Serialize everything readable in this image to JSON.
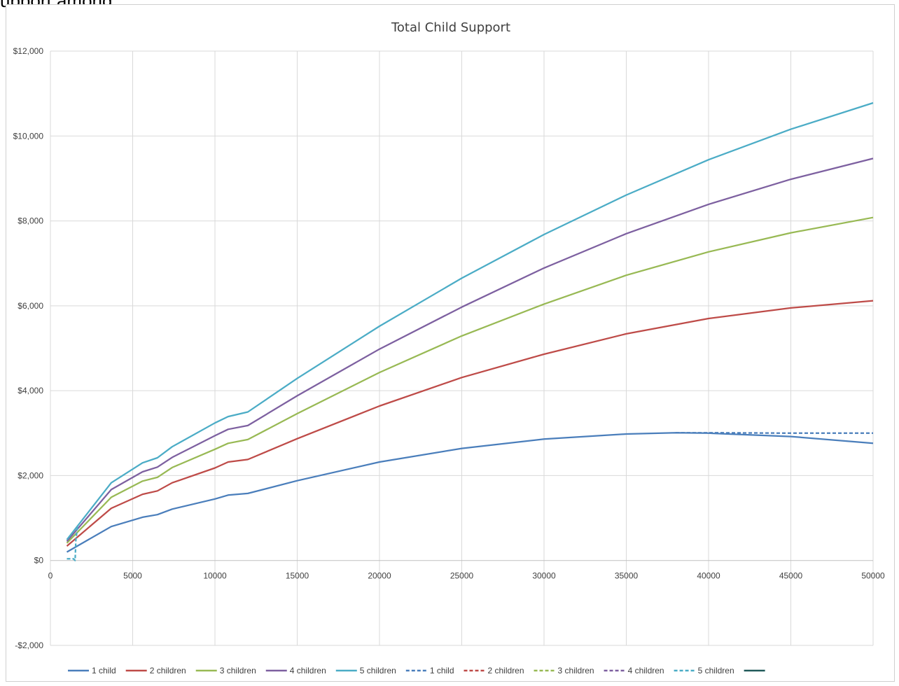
{
  "top_text": "upport among",
  "chart_data": {
    "type": "line",
    "title": "Total Child Support",
    "xlabel": "",
    "ylabel": "",
    "xlim": [
      0,
      50000
    ],
    "ylim": [
      -2000,
      12000
    ],
    "x_ticks": [
      0,
      5000,
      10000,
      15000,
      20000,
      25000,
      30000,
      35000,
      40000,
      45000,
      50000
    ],
    "x_tick_labels": [
      "0",
      "5000",
      "10000",
      "15000",
      "20000",
      "25000",
      "30000",
      "35000",
      "40000",
      "45000",
      "50000"
    ],
    "y_ticks": [
      -2000,
      0,
      2000,
      4000,
      6000,
      8000,
      10000,
      12000
    ],
    "y_tick_labels": [
      "-$2,000",
      "$0",
      "$2,000",
      "$4,000",
      "$6,000",
      "$8,000",
      "$10,000",
      "$12,000"
    ],
    "grid": true,
    "legend_position": "bottom",
    "series": [
      {
        "name": "1 child",
        "color": "#4a7ebb",
        "dash": false,
        "points": [
          [
            1000,
            200
          ],
          [
            3700,
            800
          ],
          [
            5600,
            1020
          ],
          [
            6500,
            1080
          ],
          [
            7400,
            1210
          ],
          [
            10000,
            1450
          ],
          [
            10800,
            1540
          ],
          [
            12000,
            1580
          ],
          [
            15000,
            1880
          ],
          [
            20000,
            2320
          ],
          [
            25000,
            2640
          ],
          [
            30000,
            2860
          ],
          [
            35000,
            2980
          ],
          [
            38000,
            3010
          ],
          [
            40000,
            3000
          ],
          [
            45000,
            2920
          ],
          [
            50000,
            2760
          ]
        ]
      },
      {
        "name": "2 children",
        "color": "#be4b48",
        "dash": false,
        "points": [
          [
            1000,
            340
          ],
          [
            3700,
            1230
          ],
          [
            5600,
            1560
          ],
          [
            6500,
            1640
          ],
          [
            7400,
            1830
          ],
          [
            10000,
            2180
          ],
          [
            10800,
            2320
          ],
          [
            12000,
            2380
          ],
          [
            15000,
            2870
          ],
          [
            20000,
            3640
          ],
          [
            25000,
            4310
          ],
          [
            30000,
            4860
          ],
          [
            35000,
            5340
          ],
          [
            40000,
            5700
          ],
          [
            45000,
            5950
          ],
          [
            50000,
            6120
          ]
        ]
      },
      {
        "name": "3 children",
        "color": "#98b954",
        "dash": false,
        "points": [
          [
            1000,
            410
          ],
          [
            3700,
            1490
          ],
          [
            5600,
            1870
          ],
          [
            6500,
            1960
          ],
          [
            7400,
            2190
          ],
          [
            10000,
            2620
          ],
          [
            10800,
            2760
          ],
          [
            12000,
            2850
          ],
          [
            15000,
            3460
          ],
          [
            20000,
            4430
          ],
          [
            25000,
            5290
          ],
          [
            30000,
            6040
          ],
          [
            35000,
            6720
          ],
          [
            40000,
            7270
          ],
          [
            45000,
            7720
          ],
          [
            50000,
            8080
          ]
        ]
      },
      {
        "name": "4 children",
        "color": "#7d60a0",
        "dash": false,
        "points": [
          [
            1000,
            450
          ],
          [
            3700,
            1670
          ],
          [
            5600,
            2090
          ],
          [
            6500,
            2200
          ],
          [
            7400,
            2430
          ],
          [
            10000,
            2940
          ],
          [
            10800,
            3090
          ],
          [
            12000,
            3180
          ],
          [
            15000,
            3880
          ],
          [
            20000,
            4980
          ],
          [
            25000,
            5970
          ],
          [
            30000,
            6890
          ],
          [
            35000,
            7700
          ],
          [
            40000,
            8390
          ],
          [
            45000,
            8980
          ],
          [
            50000,
            9470
          ]
        ]
      },
      {
        "name": "5 children",
        "color": "#4bacc6",
        "dash": false,
        "points": [
          [
            1000,
            490
          ],
          [
            3700,
            1830
          ],
          [
            5600,
            2300
          ],
          [
            6500,
            2420
          ],
          [
            7400,
            2680
          ],
          [
            10000,
            3240
          ],
          [
            10800,
            3390
          ],
          [
            12000,
            3500
          ],
          [
            15000,
            4290
          ],
          [
            20000,
            5520
          ],
          [
            25000,
            6650
          ],
          [
            30000,
            7680
          ],
          [
            35000,
            8610
          ],
          [
            40000,
            9440
          ],
          [
            45000,
            10160
          ],
          [
            50000,
            10780
          ]
        ]
      },
      {
        "name": "1 child",
        "color": "#4a7ebb",
        "dash": true,
        "points": [
          [
            38000,
            3010
          ],
          [
            40000,
            3010
          ],
          [
            45000,
            3000
          ],
          [
            50000,
            3000
          ]
        ]
      },
      {
        "name": "2 children",
        "color": "#be4b48",
        "dash": true,
        "points": []
      },
      {
        "name": "3 children",
        "color": "#98b954",
        "dash": true,
        "points": []
      },
      {
        "name": "4 children",
        "color": "#7d60a0",
        "dash": true,
        "points": []
      },
      {
        "name": "5 children",
        "color": "#4bacc6",
        "dash": true,
        "points": [
          [
            1000,
            40
          ],
          [
            1400,
            40
          ],
          [
            1500,
            0
          ],
          [
            1550,
            500
          ],
          [
            1650,
            800
          ]
        ]
      },
      {
        "name": "",
        "color": "#215a5a",
        "dash": false,
        "points": []
      }
    ]
  }
}
